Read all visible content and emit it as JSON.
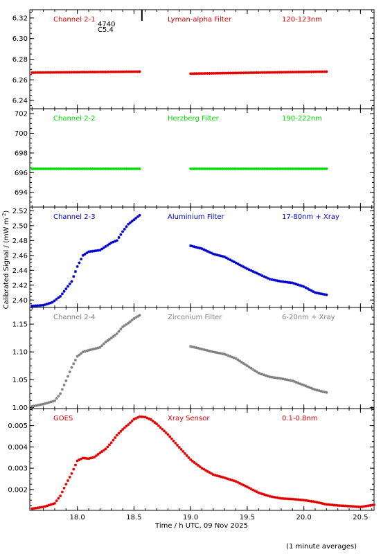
{
  "figure": {
    "ylabel": "Calibrated Signal / (mW m",
    "ylabel_sup": "-2",
    "ylabel_end": ")",
    "xlabel": "Time / h UTC, 09 Nov 2025",
    "footnote": "(1 minute averages)",
    "x_range": [
      17.58,
      20.62
    ],
    "x_ticks": [
      "18.0",
      "18.5",
      "19.0",
      "19.5",
      "20.0",
      "20.5"
    ],
    "x_tick_values": [
      18.0,
      18.5,
      19.0,
      19.5,
      20.0,
      20.5
    ],
    "event_mark": {
      "x": 18.57,
      "labels": [
        "4740",
        "C5.4"
      ]
    }
  },
  "chart_data": [
    {
      "type": "scatter",
      "channel": "Channel 2-1",
      "filter": "Lyman-alpha Filter",
      "band": "120-123nm",
      "color": "#e00000",
      "ylim": [
        6.232,
        6.328
      ],
      "yticks": [
        "6.24",
        "6.26",
        "6.28",
        "6.30",
        "6.32"
      ],
      "ytick_values": [
        6.24,
        6.26,
        6.28,
        6.3,
        6.32
      ],
      "segments": [
        {
          "x": [
            17.6,
            18.55
          ],
          "y": [
            6.267,
            6.268
          ]
        },
        {
          "x": [
            19.0,
            20.2
          ],
          "y": [
            6.266,
            6.268
          ]
        }
      ]
    },
    {
      "type": "scatter",
      "channel": "Channel 2-2",
      "filter": "Herzberg Filter",
      "band": "190-222nm",
      "color": "#00dd00",
      "ylim": [
        692.5,
        702.5
      ],
      "yticks": [
        "694",
        "696",
        "698",
        "700",
        "702"
      ],
      "ytick_values": [
        694,
        696,
        698,
        700,
        702
      ],
      "segments": [
        {
          "x": [
            17.6,
            18.55
          ],
          "y": [
            696.4,
            696.4
          ]
        },
        {
          "x": [
            19.0,
            20.2
          ],
          "y": [
            696.4,
            696.4
          ]
        }
      ]
    },
    {
      "type": "scatter",
      "channel": "Channel 2-3",
      "filter": "Aluminium Filter",
      "band": "17-80nm + Xray",
      "color": "#0000cc",
      "ylim": [
        2.39,
        2.525
      ],
      "yticks": [
        "2.40",
        "2.42",
        "2.44",
        "2.46",
        "2.48",
        "2.50",
        "2.52"
      ],
      "ytick_values": [
        2.4,
        2.42,
        2.44,
        2.46,
        2.48,
        2.5,
        2.52
      ],
      "segments": [
        {
          "x": [
            17.6,
            17.7,
            17.78,
            17.85,
            17.9,
            17.95,
            18.0,
            18.05,
            18.1,
            18.2,
            18.25,
            18.3,
            18.35,
            18.4,
            18.45,
            18.5,
            18.55
          ],
          "y": [
            2.392,
            2.393,
            2.397,
            2.405,
            2.415,
            2.425,
            2.445,
            2.46,
            2.465,
            2.467,
            2.472,
            2.477,
            2.48,
            2.492,
            2.502,
            2.508,
            2.514
          ]
        },
        {
          "x": [
            19.0,
            19.1,
            19.2,
            19.3,
            19.4,
            19.5,
            19.6,
            19.7,
            19.8,
            19.9,
            20.0,
            20.1,
            20.2
          ],
          "y": [
            2.473,
            2.469,
            2.462,
            2.458,
            2.45,
            2.442,
            2.435,
            2.428,
            2.425,
            2.423,
            2.418,
            2.41,
            2.407
          ]
        }
      ]
    },
    {
      "type": "scatter",
      "channel": "Channel 2-4",
      "filter": "Zirconium Filter",
      "band": "6-20nm + Xray",
      "color": "#808080",
      "ylim": [
        0.998,
        1.18
      ],
      "yticks": [
        "1.00",
        "1.05",
        "1.10",
        "1.15"
      ],
      "ytick_values": [
        1.0,
        1.05,
        1.1,
        1.15
      ],
      "segments": [
        {
          "x": [
            17.6,
            17.7,
            17.8,
            17.85,
            17.9,
            17.95,
            18.0,
            18.05,
            18.1,
            18.2,
            18.25,
            18.3,
            18.35,
            18.4,
            18.45,
            18.5,
            18.55
          ],
          "y": [
            1.002,
            1.006,
            1.012,
            1.025,
            1.048,
            1.072,
            1.092,
            1.1,
            1.103,
            1.108,
            1.118,
            1.125,
            1.133,
            1.145,
            1.152,
            1.16,
            1.166
          ]
        },
        {
          "x": [
            19.0,
            19.1,
            19.2,
            19.3,
            19.4,
            19.5,
            19.6,
            19.7,
            19.8,
            19.9,
            20.0,
            20.1,
            20.2
          ],
          "y": [
            1.11,
            1.105,
            1.1,
            1.096,
            1.088,
            1.075,
            1.062,
            1.055,
            1.052,
            1.048,
            1.04,
            1.032,
            1.027
          ]
        }
      ]
    },
    {
      "type": "scatter",
      "channel": "GOES",
      "filter": "Xray Sensor",
      "band": "0.1-0.8nm",
      "color": "#e00000",
      "ylim": [
        0.00102,
        0.0058
      ],
      "yticks": [
        "0.002",
        "0.003",
        "0.004",
        "0.005"
      ],
      "ytick_values": [
        0.002,
        0.003,
        0.004,
        0.005
      ],
      "segments": [
        {
          "x": [
            17.6,
            17.7,
            17.8,
            17.85,
            17.9,
            17.95,
            18.0,
            18.05,
            18.1,
            18.15,
            18.2,
            18.25,
            18.3,
            18.35,
            18.4,
            18.45,
            18.5,
            18.55,
            18.6,
            18.65,
            18.7,
            18.8,
            18.9,
            19.0,
            19.1,
            19.2,
            19.3,
            19.4,
            19.5,
            19.6,
            19.7,
            19.8,
            19.9,
            20.0,
            20.1,
            20.2,
            20.3,
            20.4,
            20.5,
            20.62
          ],
          "y": [
            0.0011,
            0.00118,
            0.00135,
            0.0017,
            0.00225,
            0.00275,
            0.00335,
            0.00348,
            0.00345,
            0.00352,
            0.00372,
            0.0039,
            0.0042,
            0.00455,
            0.00482,
            0.00505,
            0.0053,
            0.00542,
            0.0054,
            0.00528,
            0.00508,
            0.00458,
            0.00398,
            0.0034,
            0.003,
            0.0027,
            0.00255,
            0.00238,
            0.00212,
            0.00185,
            0.00168,
            0.00158,
            0.00155,
            0.0015,
            0.00142,
            0.0013,
            0.00125,
            0.00122,
            0.00118,
            0.00128
          ]
        }
      ]
    }
  ]
}
